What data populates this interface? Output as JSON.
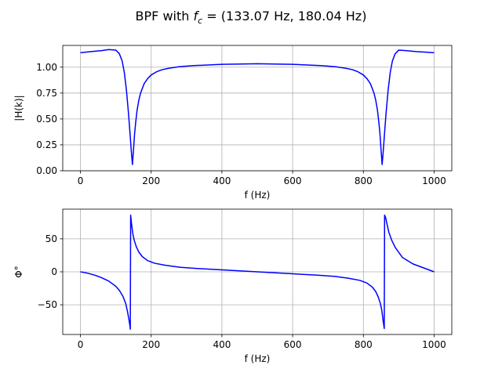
{
  "figure": {
    "title_prefix": "BPF with ",
    "title_sub": "c",
    "title_rest": " = (133.07 Hz, 180.04 Hz)",
    "line_color": "#0000ff"
  },
  "chart_data": [
    {
      "type": "line",
      "xlabel": "f (Hz)",
      "ylabel": "|H(k)|",
      "xlim": [
        -50,
        1050
      ],
      "ylim": [
        0,
        1.21
      ],
      "xticks": [
        0,
        200,
        400,
        600,
        800,
        1000
      ],
      "xtick_labels": [
        "0",
        "200",
        "400",
        "600",
        "800",
        "1000"
      ],
      "yticks": [
        0,
        0.25,
        0.5,
        0.75,
        1.0
      ],
      "ytick_labels": [
        "0.00",
        "0.25",
        "0.50",
        "0.75",
        "1.00"
      ],
      "grid": true,
      "series": [
        {
          "color": "#0000ff",
          "x": [
            0,
            30,
            60,
            80,
            100,
            110,
            118,
            124,
            130,
            136,
            140,
            144,
            147,
            150,
            153,
            156,
            160,
            165,
            170,
            180,
            190,
            200,
            215,
            230,
            250,
            280,
            320,
            400,
            500,
            600,
            680,
            720,
            750,
            770,
            785,
            800,
            810,
            820,
            830,
            835,
            840,
            844,
            847,
            850,
            853,
            856,
            860,
            864,
            870,
            876,
            882,
            890,
            900,
            920,
            950,
            1000
          ],
          "y": [
            1.14,
            1.15,
            1.16,
            1.17,
            1.165,
            1.13,
            1.06,
            0.95,
            0.78,
            0.55,
            0.37,
            0.18,
            0.06,
            0.2,
            0.35,
            0.46,
            0.58,
            0.68,
            0.75,
            0.84,
            0.89,
            0.925,
            0.955,
            0.975,
            0.99,
            1.005,
            1.015,
            1.028,
            1.033,
            1.028,
            1.015,
            1.005,
            0.99,
            0.975,
            0.955,
            0.925,
            0.89,
            0.84,
            0.75,
            0.68,
            0.58,
            0.46,
            0.35,
            0.2,
            0.06,
            0.18,
            0.37,
            0.55,
            0.78,
            0.95,
            1.06,
            1.13,
            1.165,
            1.16,
            1.15,
            1.14
          ]
        }
      ]
    },
    {
      "type": "line",
      "xlabel": "f (Hz)",
      "ylabel": "Φ°",
      "xlim": [
        -50,
        1050
      ],
      "ylim": [
        -95,
        95
      ],
      "xticks": [
        0,
        200,
        400,
        600,
        800,
        1000
      ],
      "xtick_labels": [
        "0",
        "200",
        "400",
        "600",
        "800",
        "1000"
      ],
      "yticks": [
        -50,
        0,
        50
      ],
      "ytick_labels": [
        "−50",
        "0",
        "50"
      ],
      "grid": true,
      "series": [
        {
          "color": "#0000ff",
          "x": [
            0,
            20,
            40,
            60,
            80,
            100,
            110,
            120,
            128,
            133,
            137,
            140,
            141,
            142,
            144,
            148,
            152,
            158,
            165,
            175,
            190,
            210,
            240,
            280,
            330,
            400,
            500,
            600,
            670,
            720,
            760,
            790,
            810,
            825,
            835,
            842,
            848,
            852,
            856,
            858,
            859,
            860,
            863,
            867,
            872,
            880,
            890,
            910,
            940,
            1000
          ],
          "y": [
            0,
            -2,
            -5,
            -9,
            -14,
            -22,
            -28,
            -37,
            -48,
            -60,
            -72,
            -82,
            -87,
            86,
            75,
            58,
            48,
            38,
            30,
            23,
            17,
            13,
            10,
            7,
            5,
            3,
            0,
            -3,
            -5,
            -7,
            -10,
            -13,
            -17,
            -23,
            -30,
            -38,
            -48,
            -58,
            -75,
            -82,
            -86,
            86,
            82,
            72,
            60,
            48,
            37,
            22,
            12,
            0
          ]
        }
      ]
    }
  ]
}
